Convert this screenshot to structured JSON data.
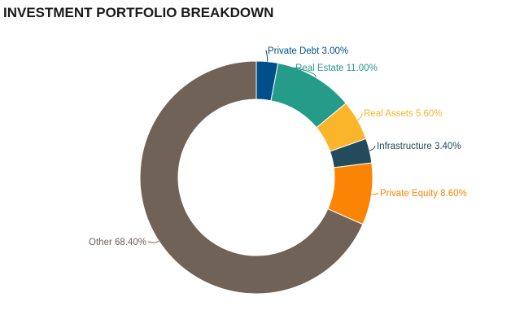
{
  "chart_data": {
    "type": "pie",
    "subtype": "donut",
    "title": "INVESTMENT PORTFOLIO BREAKDOWN",
    "unit": "%",
    "slices": [
      {
        "label": "Private Debt",
        "value": 3.0,
        "display": "Private Debt 3.00%",
        "color": "#004f8a"
      },
      {
        "label": "Real Estate",
        "value": 11.0,
        "display": "Real Estate 11.00%",
        "color": "#259b8a"
      },
      {
        "label": "Real Assets",
        "value": 5.6,
        "display": "Real Assets 5.60%",
        "color": "#fbb52a"
      },
      {
        "label": "Infrastructure",
        "value": 3.4,
        "display": "Infrastructure 3.40%",
        "color": "#244b5b"
      },
      {
        "label": "Private Equity",
        "value": 8.6,
        "display": "Private Equity 8.60%",
        "color": "#fb8404"
      },
      {
        "label": "Other",
        "value": 68.4,
        "display": "Other 68.40%",
        "color": "#706256"
      }
    ],
    "start_angle_deg": 0,
    "direction": "clockwise",
    "legend": "none",
    "data_labels": "outside-with-leader-lines"
  }
}
